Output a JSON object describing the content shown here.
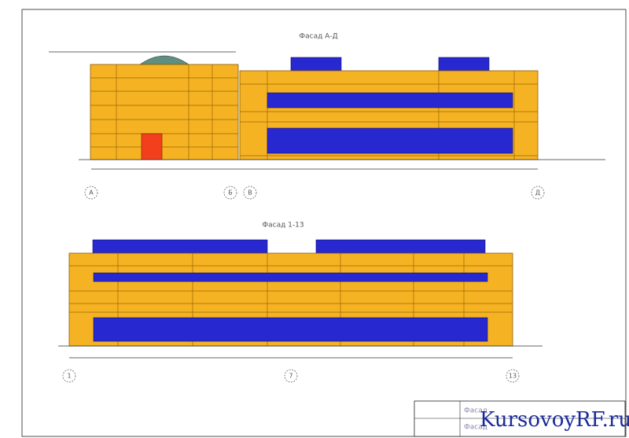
{
  "drawing": {
    "facade_top": {
      "title": "Фасад А-Д",
      "axes": [
        "А",
        "Б",
        "В",
        "Д"
      ]
    },
    "facade_bottom": {
      "title": "Фасад 1-13",
      "axes": [
        "1",
        "7",
        "13"
      ]
    },
    "title_block": {
      "sheet_title": "Фасад",
      "sheet_subtitle": "Фасад"
    },
    "watermark": "KursovoyRF.ru"
  }
}
